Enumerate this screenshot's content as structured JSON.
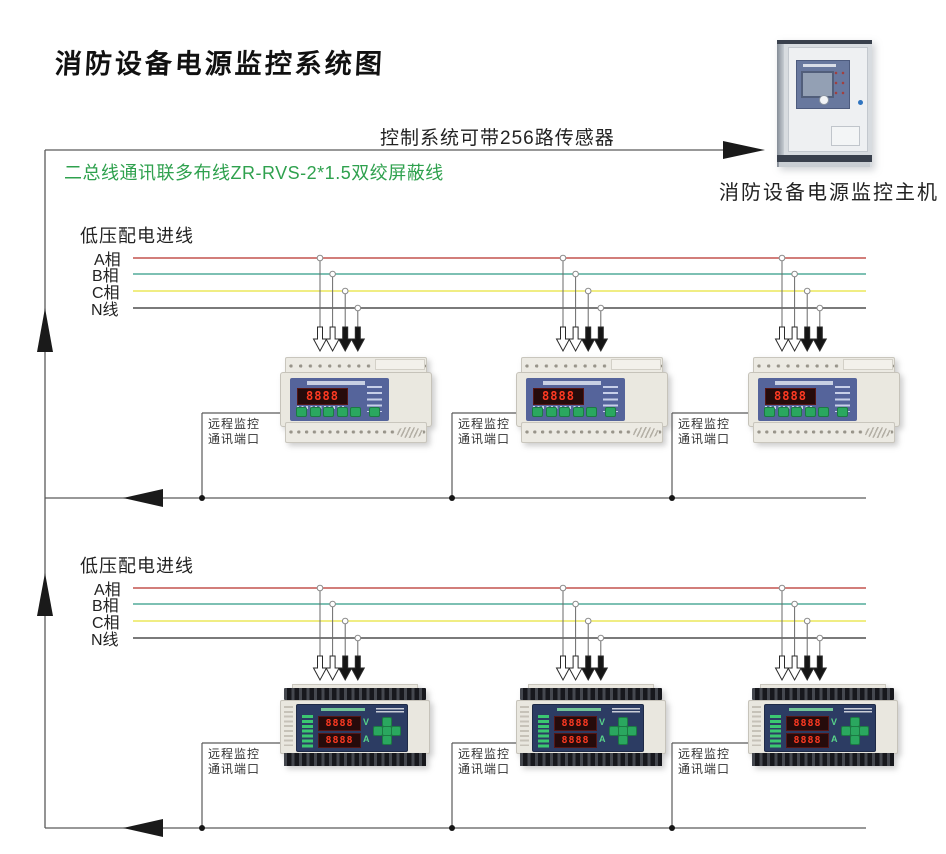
{
  "title": "消防设备电源监控系统图",
  "top_note": "控制系统可带256路传感器",
  "wire_note": {
    "text": "二总线通讯联多布线ZR-RVS-2*1.5双绞屏蔽线",
    "color": "#2fa14e"
  },
  "host": {
    "label": "消防设备电源监控主机"
  },
  "sections": [
    {
      "header": "低压配电进线",
      "phases": [
        {
          "label": "A相",
          "color": "#c4544e"
        },
        {
          "label": "B相",
          "color": "#52ab9a"
        },
        {
          "label": "C相",
          "color": "#ece75a"
        },
        {
          "label": "N线",
          "color": "#4f4f4f"
        }
      ]
    },
    {
      "header": "低压配电进线",
      "phases": [
        {
          "label": "A相",
          "color": "#c4544e"
        },
        {
          "label": "B相",
          "color": "#52ab9a"
        },
        {
          "label": "C相",
          "color": "#ece75a"
        },
        {
          "label": "N线",
          "color": "#4f4f4f"
        }
      ]
    }
  ],
  "port_label": {
    "line1": "远程监控",
    "line2": "通讯端口"
  },
  "device_row1": {
    "display": "8888"
  },
  "device_row2": {
    "display_v": "8888",
    "unit_v": "V",
    "display_a": "8888",
    "unit_a": "A"
  },
  "colors": {
    "diagram_line": "#5a5a5a",
    "arrow": "#1a1a1a",
    "button_green": "#2aa75f",
    "display_red": "#ff3a22"
  }
}
